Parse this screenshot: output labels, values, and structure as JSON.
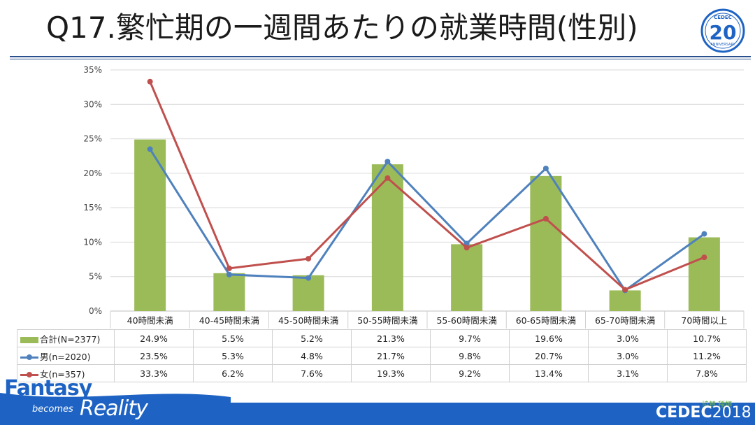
{
  "slide": {
    "title": "Q17.繁忙期の一週間あたりの就業時間(性別)"
  },
  "logos": {
    "top_right": {
      "brand": "CEDEC",
      "number": "20",
      "sub": "ANNIVERSARY"
    },
    "footer": {
      "brand": "CEDEC",
      "year": "2018"
    },
    "tagline": {
      "part1": "Fantasy",
      "part2": "becomes",
      "part3": "Reality"
    },
    "badge": "協賛 種類"
  },
  "colors": {
    "bar": "#9bbb59",
    "male": "#4f81bd",
    "female": "#c0504d",
    "grid": "#d9d9d9",
    "footer": "#1e63c4"
  },
  "chart_data": {
    "type": "bar",
    "title": "",
    "xlabel": "",
    "ylabel": "",
    "ylim": [
      0,
      35
    ],
    "yticks": [
      "0%",
      "5%",
      "10%",
      "15%",
      "20%",
      "25%",
      "30%",
      "35%"
    ],
    "y_unit": "%",
    "grid": true,
    "legend": "data-table-left",
    "categories": [
      "40時間未満",
      "40-45時間未満",
      "45-50時間未満",
      "50-55時間未満",
      "55-60時間未満",
      "60-65時間未満",
      "65-70時間未満",
      "70時間以上"
    ],
    "series": [
      {
        "name": "合計(N=2377)",
        "kind": "bar",
        "color": "#9bbb59",
        "values": [
          24.9,
          5.5,
          5.2,
          21.3,
          9.7,
          19.6,
          3.0,
          10.7
        ],
        "labels": [
          "24.9%",
          "5.5%",
          "5.2%",
          "21.3%",
          "9.7%",
          "19.6%",
          "3.0%",
          "10.7%"
        ]
      },
      {
        "name": "男(n=2020)",
        "kind": "line",
        "color": "#4f81bd",
        "values": [
          23.5,
          5.3,
          4.8,
          21.7,
          9.8,
          20.7,
          3.0,
          11.2
        ],
        "labels": [
          "23.5%",
          "5.3%",
          "4.8%",
          "21.7%",
          "9.8%",
          "20.7%",
          "3.0%",
          "11.2%"
        ]
      },
      {
        "name": "女(n=357)",
        "kind": "line",
        "color": "#c0504d",
        "values": [
          33.3,
          6.2,
          7.6,
          19.3,
          9.2,
          13.4,
          3.1,
          7.8
        ],
        "labels": [
          "33.3%",
          "6.2%",
          "7.6%",
          "19.3%",
          "9.2%",
          "13.4%",
          "3.1%",
          "7.8%"
        ]
      }
    ]
  }
}
